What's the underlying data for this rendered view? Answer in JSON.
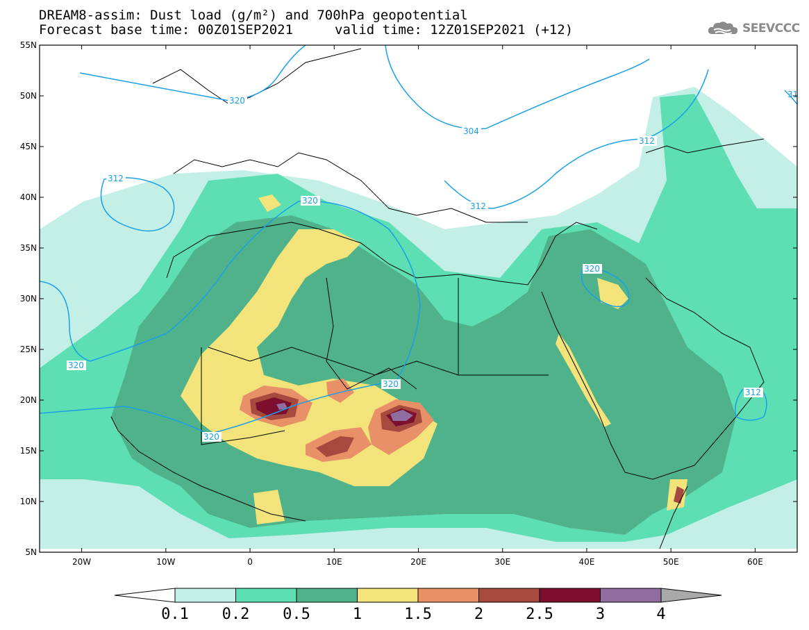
{
  "title": {
    "line1": "DREAM8-assim: Dust load (g/m²) and 700hPa geopotential",
    "line2_base": "Forecast base time: 00Z01SEP2021",
    "line2_valid": "valid time: 12Z01SEP2021 (+12)"
  },
  "logo": {
    "text": "SEEVCCC",
    "icon": "cloud-icon"
  },
  "map": {
    "projection": "lat-lon",
    "lat_range": [
      5,
      55
    ],
    "lon_range": [
      -25,
      65
    ],
    "lat_ticks": [
      "55N",
      "50N",
      "45N",
      "40N",
      "35N",
      "30N",
      "25N",
      "20N",
      "15N",
      "10N",
      "5N"
    ],
    "lon_ticks": [
      "20W",
      "10W",
      "0",
      "10E",
      "20E",
      "30E",
      "40E",
      "50E",
      "60E"
    ],
    "contour_labels": [
      "320",
      "304",
      "312",
      "312",
      "320",
      "320",
      "320",
      "320",
      "320",
      "312",
      "312",
      "31"
    ]
  },
  "colorbar": {
    "levels": [
      "0.1",
      "0.2",
      "0.5",
      "1",
      "1.5",
      "2",
      "2.5",
      "3",
      "4"
    ],
    "colors": [
      "#c3efe6",
      "#5ddfb3",
      "#4fb28a",
      "#f2e37a",
      "#e89068",
      "#a6493f",
      "#7d0f2e",
      "#8f6da0",
      "#a9a9a9"
    ]
  }
}
